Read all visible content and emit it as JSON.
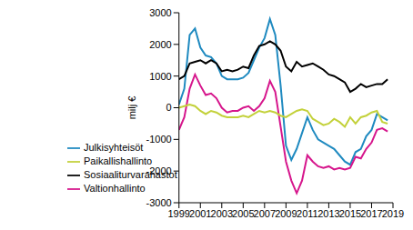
{
  "chart_data": {
    "type": "line",
    "y_label": "milj €",
    "x": [
      1999,
      1999.5,
      2000,
      2000.5,
      2001,
      2001.5,
      2002,
      2002.5,
      2003,
      2003.5,
      2004,
      2004.5,
      2005,
      2005.5,
      2006,
      2006.5,
      2007,
      2007.5,
      2008,
      2008.5,
      2009,
      2009.5,
      2010,
      2010.5,
      2011,
      2011.5,
      2012,
      2012.5,
      2013,
      2013.5,
      2014,
      2014.5,
      2015,
      2015.5,
      2016,
      2016.5,
      2017,
      2017.5,
      2018,
      2018.5
    ],
    "series": [
      {
        "name": "Julkisyhteisöt",
        "color": "#1f8ac0",
        "values": [
          100,
          600,
          2300,
          2500,
          1900,
          1650,
          1600,
          1400,
          1000,
          900,
          900,
          900,
          950,
          1100,
          1500,
          1900,
          2200,
          2800,
          2300,
          700,
          -1200,
          -1650,
          -1300,
          -800,
          -300,
          -700,
          -1000,
          -1100,
          -1200,
          -1300,
          -1500,
          -1700,
          -1800,
          -1400,
          -1300,
          -900,
          -700,
          -200,
          -300,
          -400
        ]
      },
      {
        "name": "Valtionhallinto",
        "color": "#d6168c",
        "values": [
          -700,
          -300,
          600,
          1050,
          700,
          400,
          450,
          300,
          0,
          -150,
          -100,
          -100,
          0,
          50,
          -100,
          50,
          300,
          850,
          500,
          -600,
          -1700,
          -2300,
          -2700,
          -2300,
          -1500,
          -1700,
          -1850,
          -1900,
          -1850,
          -1950,
          -1900,
          -1950,
          -1900,
          -1550,
          -1600,
          -1300,
          -1100,
          -700,
          -650,
          -750
        ]
      },
      {
        "name": "Paikallishallinto",
        "color": "#c3d13a",
        "values": [
          0,
          50,
          100,
          50,
          -100,
          -200,
          -100,
          -150,
          -250,
          -300,
          -300,
          -300,
          -250,
          -300,
          -200,
          -100,
          -150,
          -100,
          -150,
          -250,
          -300,
          -200,
          -100,
          -50,
          -100,
          -350,
          -450,
          -550,
          -500,
          -350,
          -450,
          -600,
          -300,
          -500,
          -300,
          -250,
          -150,
          -100,
          -450,
          -500
        ]
      },
      {
        "name": "Sosiaaliturvarahastot",
        "color": "#000000",
        "values": [
          900,
          1000,
          1400,
          1450,
          1500,
          1400,
          1500,
          1400,
          1150,
          1200,
          1150,
          1200,
          1300,
          1250,
          1650,
          1950,
          2000,
          2100,
          2000,
          1800,
          1300,
          1150,
          1450,
          1300,
          1350,
          1400,
          1300,
          1200,
          1050,
          1000,
          900,
          800,
          500,
          600,
          750,
          650,
          700,
          750,
          750,
          900
        ]
      }
    ],
    "xlim": [
      1999,
      2019
    ],
    "xticks": [
      1999,
      2001,
      2003,
      2005,
      2007,
      2009,
      2011,
      2013,
      2015,
      2017,
      2019
    ],
    "ylim": [
      -3000,
      3000
    ],
    "yticks": [
      -3000,
      -2000,
      -1000,
      0,
      1000,
      2000,
      3000
    ],
    "grid": false,
    "legend": "lower left"
  }
}
